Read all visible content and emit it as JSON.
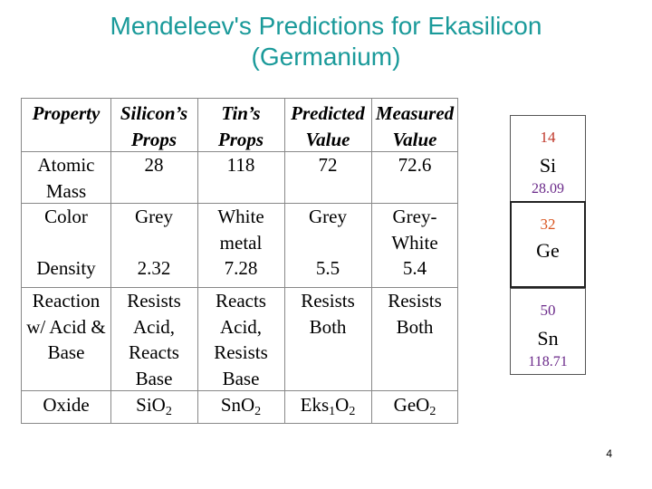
{
  "title": {
    "line1": "Mendeleev's Predictions for Ekasilicon",
    "line2": "(Germanium)"
  },
  "table": {
    "headers": [
      [
        "Property",
        ""
      ],
      [
        "Silicon’s",
        "Props"
      ],
      [
        "Tin’s",
        "Props"
      ],
      [
        "Predicted",
        "Value"
      ],
      [
        "Measured",
        "Value"
      ]
    ],
    "rows": [
      {
        "property": [
          "Atomic",
          "Mass"
        ],
        "si": "28",
        "sn": "118",
        "pred": "72",
        "meas": "72.6"
      },
      {
        "property": [
          "Color"
        ],
        "si": "Grey",
        "sn": [
          "White",
          "metal"
        ],
        "pred": "Grey",
        "meas": [
          "Grey-",
          "White"
        ]
      },
      {
        "property": [
          "Density"
        ],
        "si": "2.32",
        "sn": "7.28",
        "pred": "5.5",
        "meas": "5.4"
      },
      {
        "property": [
          "Reaction",
          "w/ Acid &",
          "Base"
        ],
        "si": [
          "Resists",
          "Acid,",
          "Reacts",
          "Base"
        ],
        "sn": [
          "Reacts",
          "Acid,",
          "Resists",
          "Base"
        ],
        "pred": [
          "Resists",
          "Both"
        ],
        "meas": [
          "Resists",
          "Both"
        ]
      },
      {
        "property": [
          "Oxide"
        ],
        "si": [
          "Si",
          "O",
          "2"
        ],
        "sn": [
          "Sn",
          "O",
          "2"
        ],
        "pred": [
          "Eks",
          "1",
          "O",
          "2"
        ],
        "meas": [
          "Ge",
          "O",
          "2"
        ]
      }
    ]
  },
  "elements": [
    {
      "number": "14",
      "symbol": "Si",
      "mass": "28.09",
      "number_color": "#c0392b"
    },
    {
      "number": "32",
      "symbol": "Ge",
      "mass": "",
      "number_color": "#d9541e"
    },
    {
      "number": "50",
      "symbol": "Sn",
      "mass": "118.71",
      "number_color": "#6b2a8a"
    }
  ],
  "page_number": "4"
}
